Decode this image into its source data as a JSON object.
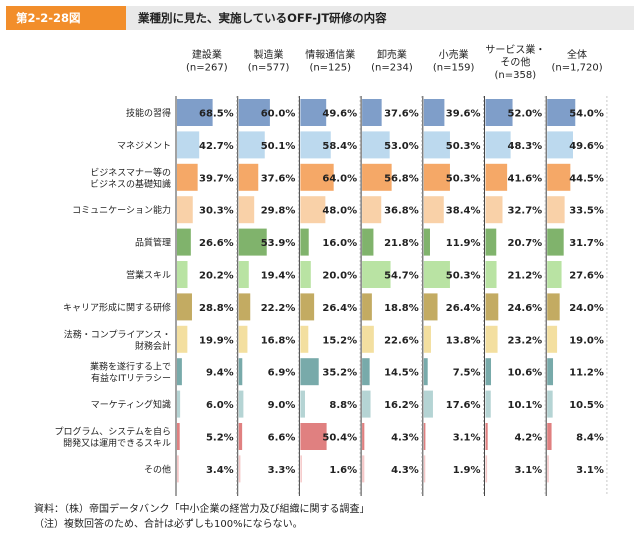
{
  "header": {
    "figure_label": "第2-2-28図",
    "title": "業種別に見た、実施しているOFF-JT研修の内容"
  },
  "notes": {
    "source": "資料：（株）帝国データバンク「中小企業の経営力及び組織に関する調査」",
    "note": "（注）複数回答のため、合計は必ずしも100%にならない。"
  },
  "chart_data": {
    "type": "bar",
    "orientation": "horizontal",
    "unit": "%",
    "xlim": [
      0,
      100
    ],
    "columns": [
      {
        "name": "建設業",
        "n": "(n=267)"
      },
      {
        "name": "製造業",
        "n": "(n=577)"
      },
      {
        "name": "情報通信業",
        "n": "(n=125)"
      },
      {
        "name": "卸売業",
        "n": "(n=234)"
      },
      {
        "name": "小売業",
        "n": "(n=159)"
      },
      {
        "name": "サービス業・",
        "name2": "その他",
        "n": "(n=358)"
      },
      {
        "name": "全体",
        "n": "(n=1,720)"
      }
    ],
    "categories": [
      {
        "label": [
          "技能の習得"
        ]
      },
      {
        "label": [
          "マネジメント"
        ]
      },
      {
        "label": [
          "ビジネスマナー等の",
          "ビジネスの基礎知識"
        ]
      },
      {
        "label": [
          "コミュニケーション能力"
        ]
      },
      {
        "label": [
          "品質管理"
        ]
      },
      {
        "label": [
          "営業スキル"
        ]
      },
      {
        "label": [
          "キャリア形成に関する研修"
        ]
      },
      {
        "label": [
          "法務・コンプライアンス・",
          "財務会計"
        ]
      },
      {
        "label": [
          "業務を遂行する上で",
          "有益なITリテラシー"
        ]
      },
      {
        "label": [
          "マーケティング知識"
        ]
      },
      {
        "label": [
          "プログラム、システムを自ら",
          "開発又は運用できるスキル"
        ]
      },
      {
        "label": [
          "その他"
        ]
      }
    ],
    "row_colors": [
      "#7f9ec9",
      "#bcd9ee",
      "#f5a867",
      "#f9d1a8",
      "#80b36c",
      "#b9e3a3",
      "#c3ab62",
      "#f3dfa0",
      "#78aaaa",
      "#b5d4d4",
      "#e08080",
      "#f5c8c8"
    ],
    "highlight": [
      [
        1,
        1,
        0,
        0,
        0,
        0,
        1
      ],
      [
        0,
        0,
        1,
        0,
        0,
        0,
        0
      ],
      [
        0,
        0,
        1,
        1,
        1,
        0,
        0
      ],
      [
        0,
        0,
        0,
        0,
        0,
        0,
        0
      ],
      [
        0,
        1,
        0,
        0,
        0,
        0,
        0
      ],
      [
        0,
        0,
        0,
        1,
        1,
        0,
        0
      ],
      [
        0,
        0,
        0,
        0,
        0,
        0,
        0
      ],
      [
        0,
        0,
        0,
        0,
        0,
        0,
        0
      ],
      [
        0,
        0,
        1,
        0,
        0,
        0,
        0
      ],
      [
        0,
        0,
        0,
        0,
        0,
        0,
        0
      ],
      [
        0,
        0,
        1,
        0,
        0,
        0,
        0
      ],
      [
        0,
        0,
        0,
        0,
        0,
        0,
        0
      ]
    ],
    "values": [
      [
        68.5,
        60.0,
        49.6,
        37.6,
        39.6,
        52.0,
        54.0
      ],
      [
        42.7,
        50.1,
        58.4,
        53.0,
        50.3,
        48.3,
        49.6
      ],
      [
        39.7,
        37.6,
        64.0,
        56.8,
        50.3,
        41.6,
        44.5
      ],
      [
        30.3,
        29.8,
        48.0,
        36.8,
        38.4,
        32.7,
        33.5
      ],
      [
        26.6,
        53.9,
        16.0,
        21.8,
        11.9,
        20.7,
        31.7
      ],
      [
        20.2,
        19.4,
        20.0,
        54.7,
        50.3,
        21.2,
        27.6
      ],
      [
        28.8,
        22.2,
        26.4,
        18.8,
        26.4,
        24.6,
        24.0
      ],
      [
        19.9,
        16.8,
        15.2,
        22.6,
        13.8,
        23.2,
        19.0
      ],
      [
        9.4,
        6.9,
        35.2,
        14.5,
        7.5,
        10.6,
        11.2
      ],
      [
        6.0,
        9.0,
        8.8,
        16.2,
        17.6,
        10.1,
        10.5
      ],
      [
        5.2,
        6.6,
        50.4,
        4.3,
        3.1,
        4.2,
        8.4
      ],
      [
        3.4,
        3.3,
        1.6,
        4.3,
        1.9,
        3.1,
        3.1
      ]
    ]
  }
}
